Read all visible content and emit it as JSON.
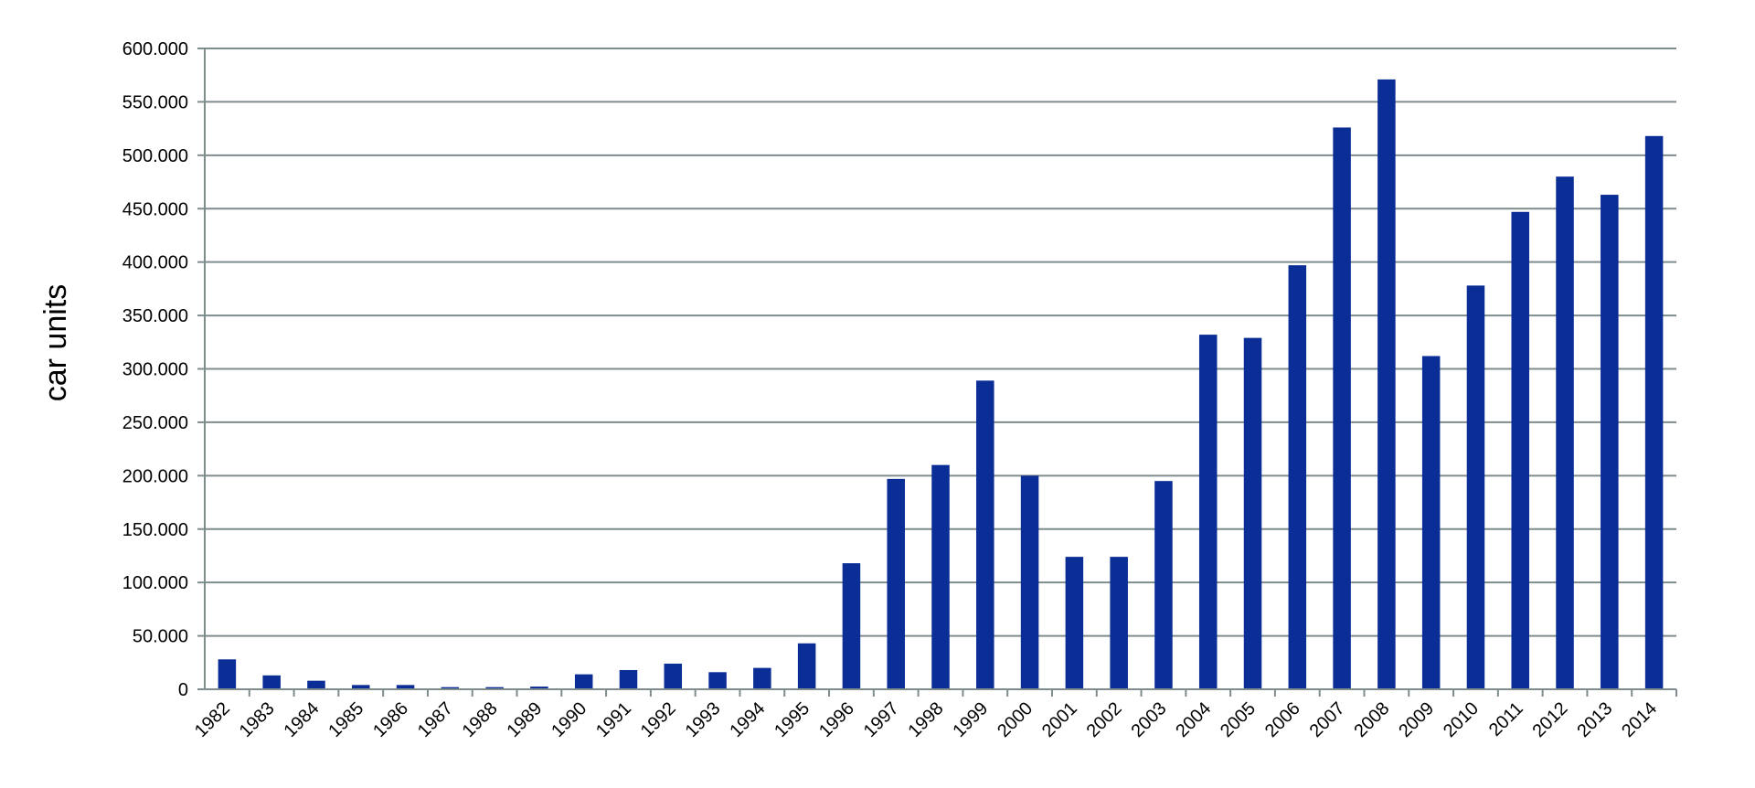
{
  "chart_data": {
    "type": "bar",
    "title": "",
    "xlabel": "",
    "ylabel": "car units",
    "ylim": [
      0,
      600000
    ],
    "ytick_step": 50000,
    "yticks": [
      "0",
      "50.000",
      "100.000",
      "150.000",
      "200.000",
      "250.000",
      "300.000",
      "350.000",
      "400.000",
      "450.000",
      "500.000",
      "550.000",
      "600.000"
    ],
    "grid": true,
    "legend": "none",
    "bar_color": "#0a2d96",
    "grid_color": "#7f8c8d",
    "categories": [
      "1982",
      "1983",
      "1984",
      "1985",
      "1986",
      "1987",
      "1988",
      "1989",
      "1990",
      "1991",
      "1992",
      "1993",
      "1994",
      "1995",
      "1996",
      "1997",
      "1998",
      "1999",
      "2000",
      "2001",
      "2002",
      "2003",
      "2004",
      "2005",
      "2006",
      "2007",
      "2008",
      "2009",
      "2010",
      "2011",
      "2012",
      "2013",
      "2014"
    ],
    "values": [
      28000,
      13000,
      8000,
      4000,
      4000,
      2000,
      2000,
      2500,
      14000,
      18000,
      24000,
      16000,
      20000,
      43000,
      118000,
      197000,
      210000,
      289000,
      200000,
      124000,
      124000,
      195000,
      332000,
      329000,
      397000,
      526000,
      571000,
      312000,
      378000,
      447000,
      480000,
      463000,
      518000
    ]
  }
}
